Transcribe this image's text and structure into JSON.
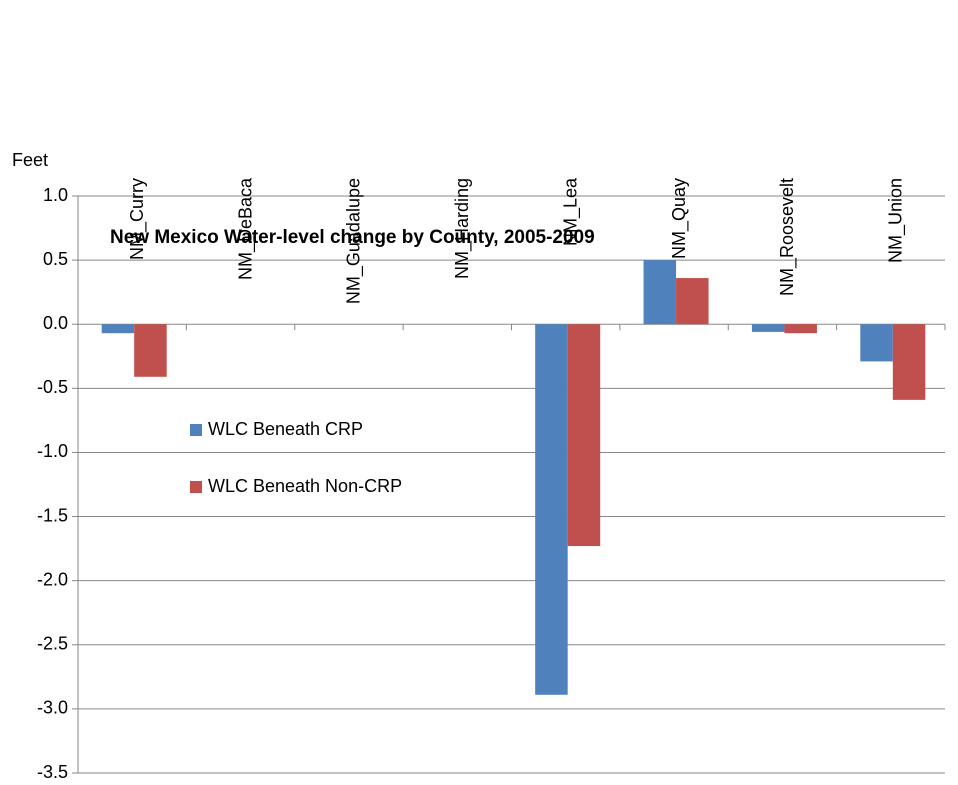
{
  "chart_data": {
    "type": "bar",
    "title": "New Mexico Water-level change by County, 2005-2009",
    "y_label": "Feet",
    "categories": [
      "NM_Curry",
      "NM_DeBaca",
      "NM_Guadalupe",
      "NM_Harding",
      "NM_Lea",
      "NM_Quay",
      "NM_Roosevelt",
      "NM_Union"
    ],
    "series": [
      {
        "name": "WLC Beneath CRP",
        "color": "#4f81bd",
        "values": [
          -0.07,
          null,
          null,
          null,
          -2.89,
          0.5,
          -0.06,
          -0.29
        ]
      },
      {
        "name": "WLC Beneath Non-CRP",
        "color": "#c0504d",
        "values": [
          -0.41,
          null,
          null,
          null,
          -1.73,
          0.36,
          -0.07,
          -0.59
        ]
      }
    ],
    "ylim": [
      -3.5,
      1.0
    ],
    "yticks": [
      {
        "value": -3.5,
        "label": "-3.5"
      },
      {
        "value": -3.0,
        "label": "-3.0"
      },
      {
        "value": -2.5,
        "label": "-2.5"
      },
      {
        "value": -2.0,
        "label": "-2.0"
      },
      {
        "value": -1.5,
        "label": "-1.5"
      },
      {
        "value": -1.0,
        "label": "-1.0"
      },
      {
        "value": -0.5,
        "label": "-0.5"
      },
      {
        "value": 0,
        "label": "0.0"
      },
      {
        "value": 0.5,
        "label": "0.5"
      },
      {
        "value": 1.0,
        "label": "1.0"
      }
    ],
    "grid": true
  }
}
